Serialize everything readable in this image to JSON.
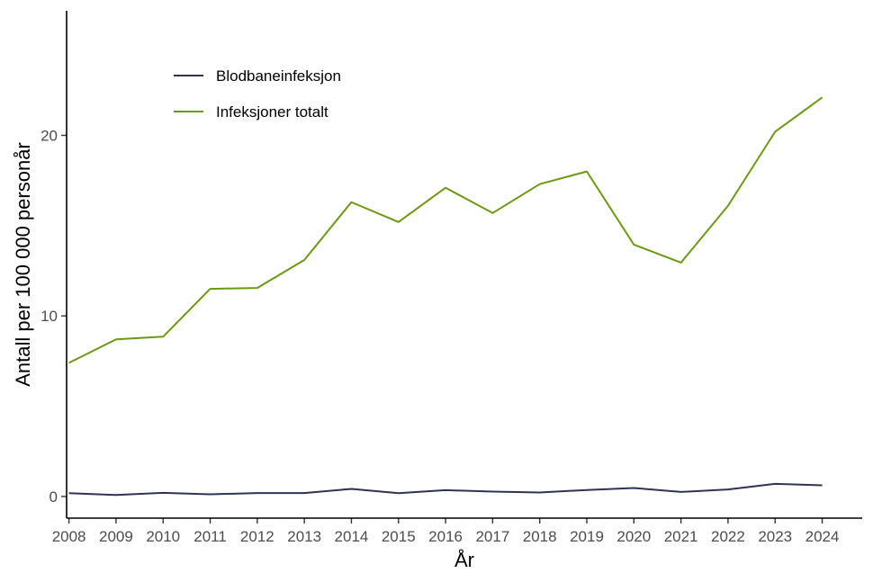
{
  "chart_data": {
    "type": "line",
    "xlabel": "År",
    "ylabel": "Antall per 100 000 personår",
    "x": [
      2008,
      2009,
      2010,
      2011,
      2012,
      2013,
      2014,
      2015,
      2016,
      2017,
      2018,
      2019,
      2020,
      2021,
      2022,
      2023,
      2024
    ],
    "xticks": [
      "2008",
      "2009",
      "2010",
      "2011",
      "2012",
      "2013",
      "2014",
      "2015",
      "2016",
      "2017",
      "2018",
      "2019",
      "2020",
      "2021",
      "2022",
      "2023",
      "2024"
    ],
    "yticks": [
      {
        "value": 0,
        "label": "0"
      },
      {
        "value": 10,
        "label": "10"
      },
      {
        "value": 20,
        "label": "20"
      }
    ],
    "xlim": [
      2007.95,
      2024.85
    ],
    "ylim": [
      -1.2,
      26.9
    ],
    "grid": false,
    "legend_position": "top-left",
    "series": [
      {
        "name": "Blodbaneinfeksjon",
        "color": "#2e3452",
        "values": [
          0.18,
          0.08,
          0.2,
          0.12,
          0.19,
          0.19,
          0.42,
          0.18,
          0.35,
          0.27,
          0.22,
          0.36,
          0.47,
          0.25,
          0.39,
          0.7,
          0.62
        ]
      },
      {
        "name": "Infeksjoner totalt",
        "color": "#6a9a10",
        "values": [
          7.4,
          8.7,
          8.85,
          11.5,
          11.55,
          13.1,
          16.3,
          15.2,
          17.1,
          15.7,
          17.3,
          18.0,
          13.95,
          12.95,
          16.1,
          20.2,
          22.1
        ]
      }
    ]
  }
}
